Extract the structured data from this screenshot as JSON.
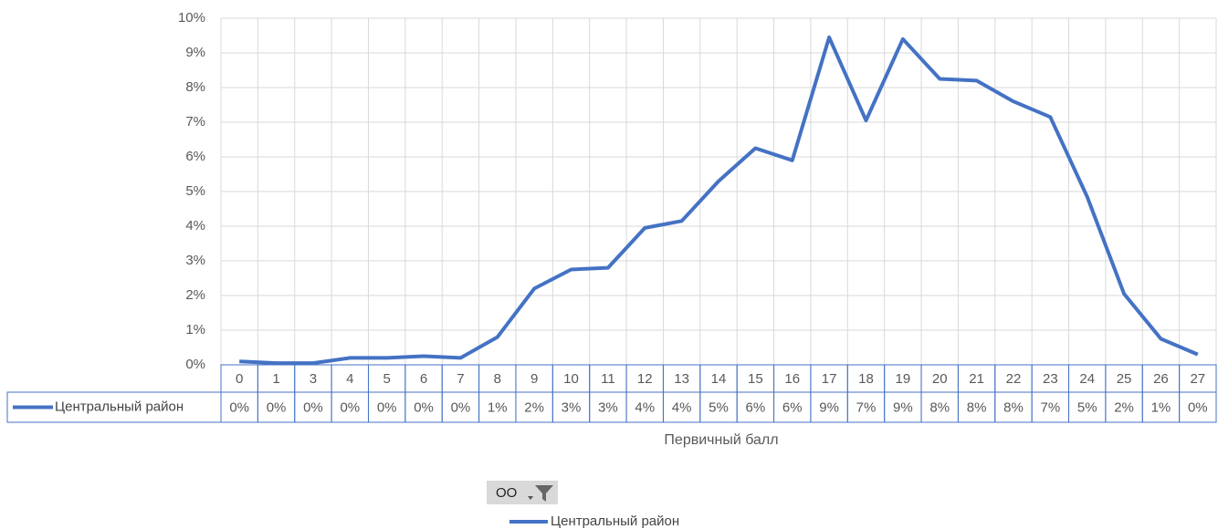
{
  "chart_data": {
    "type": "line",
    "categories": [
      "0",
      "1",
      "3",
      "4",
      "5",
      "6",
      "7",
      "8",
      "9",
      "10",
      "11",
      "12",
      "13",
      "14",
      "15",
      "16",
      "17",
      "18",
      "19",
      "20",
      "21",
      "22",
      "23",
      "24",
      "25",
      "26",
      "27"
    ],
    "series": [
      {
        "name": "Центральный район",
        "color": "#4472c4",
        "values": [
          0.1,
          0.05,
          0.05,
          0.2,
          0.2,
          0.25,
          0.2,
          0.8,
          2.2,
          2.75,
          2.8,
          3.95,
          4.15,
          5.3,
          6.25,
          5.9,
          9.45,
          7.05,
          9.4,
          8.25,
          8.2,
          7.6,
          7.15,
          4.85,
          2.05,
          0.75,
          0.3
        ],
        "value_labels": [
          "0%",
          "0%",
          "0%",
          "0%",
          "0%",
          "0%",
          "0%",
          "1%",
          "2%",
          "3%",
          "3%",
          "4%",
          "4%",
          "5%",
          "6%",
          "6%",
          "9%",
          "7%",
          "9%",
          "8%",
          "8%",
          "8%",
          "7%",
          "5%",
          "2%",
          "1%",
          "0%"
        ]
      }
    ],
    "x_label": "Первичный балл",
    "ylim": [
      0,
      10
    ],
    "yticks": [
      {
        "value": 0,
        "label": "0%"
      },
      {
        "value": 1,
        "label": "1%"
      },
      {
        "value": 2,
        "label": "2%"
      },
      {
        "value": 3,
        "label": "3%"
      },
      {
        "value": 4,
        "label": "4%"
      },
      {
        "value": 5,
        "label": "5%"
      },
      {
        "value": 6,
        "label": "6%"
      },
      {
        "value": 7,
        "label": "7%"
      },
      {
        "value": 8,
        "label": "8%"
      },
      {
        "value": 9,
        "label": "9%"
      },
      {
        "value": 10,
        "label": "10%"
      }
    ],
    "grid": true,
    "filter_button": "ОО"
  }
}
